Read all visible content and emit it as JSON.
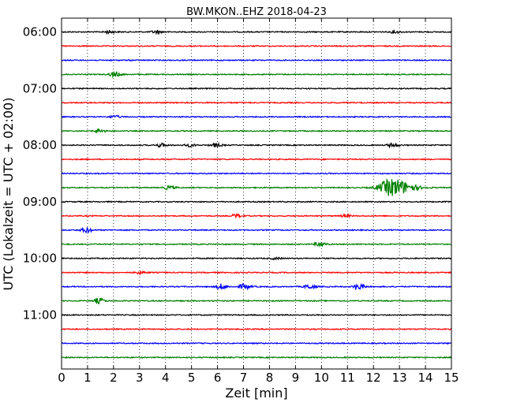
{
  "chart_data": {
    "type": "line",
    "title": "BW.MKON..EHZ 2018-04-23",
    "xlabel": "Zeit  [min]",
    "ylabel": "UTC (Lokalzeit = UTC + 02:00)",
    "xlim": [
      0,
      15
    ],
    "x_ticks": [
      "0",
      "1",
      "2",
      "3",
      "4",
      "5",
      "6",
      "7",
      "8",
      "9",
      "10",
      "11",
      "12",
      "13",
      "14",
      "15"
    ],
    "y_ticks": [
      {
        "time": "06:00",
        "trace": 0
      },
      {
        "time": "07:00",
        "trace": 4
      },
      {
        "time": "08:00",
        "trace": 8
      },
      {
        "time": "09:00",
        "trace": 12
      },
      {
        "time": "10:00",
        "trace": 16
      },
      {
        "time": "11:00",
        "trace": 20
      }
    ],
    "grid": {
      "x": true,
      "y": false
    },
    "colors": [
      "#000000",
      "#ff0000",
      "#0000ff",
      "#008000"
    ],
    "traces": [
      {
        "start": "06:00",
        "events": [
          {
            "t": 1.8,
            "amp": 0.3
          },
          {
            "t": 3.6,
            "amp": 0.3
          },
          {
            "t": 12.8,
            "amp": 0.25
          }
        ]
      },
      {
        "start": "06:15",
        "events": []
      },
      {
        "start": "06:30",
        "events": []
      },
      {
        "start": "06:45",
        "events": [
          {
            "t": 2.0,
            "amp": 0.6
          }
        ]
      },
      {
        "start": "07:00",
        "events": []
      },
      {
        "start": "07:15",
        "events": []
      },
      {
        "start": "07:30",
        "events": [
          {
            "t": 2.0,
            "amp": 0.3
          }
        ]
      },
      {
        "start": "07:45",
        "events": [
          {
            "t": 1.4,
            "amp": 0.4
          }
        ]
      },
      {
        "start": "08:00",
        "events": [
          {
            "t": 3.8,
            "amp": 0.4
          },
          {
            "t": 4.9,
            "amp": 0.3
          },
          {
            "t": 5.9,
            "amp": 0.4
          },
          {
            "t": 12.7,
            "amp": 0.45
          }
        ]
      },
      {
        "start": "08:15",
        "events": []
      },
      {
        "start": "08:30",
        "events": []
      },
      {
        "start": "08:45",
        "events": [
          {
            "t": 4.1,
            "amp": 0.4
          },
          {
            "t": 12.7,
            "amp": 2.0
          }
        ]
      },
      {
        "start": "09:00",
        "events": []
      },
      {
        "start": "09:15",
        "events": [
          {
            "t": 6.7,
            "amp": 0.4
          },
          {
            "t": 10.9,
            "amp": 0.3
          }
        ]
      },
      {
        "start": "09:30",
        "events": [
          {
            "t": 0.9,
            "amp": 0.6
          }
        ]
      },
      {
        "start": "09:45",
        "events": [
          {
            "t": 9.9,
            "amp": 0.5
          }
        ]
      },
      {
        "start": "10:00",
        "events": [
          {
            "t": 8.2,
            "amp": 0.2
          }
        ]
      },
      {
        "start": "10:15",
        "events": [
          {
            "t": 3.0,
            "amp": 0.3
          }
        ]
      },
      {
        "start": "10:30",
        "events": [
          {
            "t": 6.1,
            "amp": 0.6
          },
          {
            "t": 7.0,
            "amp": 0.6
          },
          {
            "t": 9.5,
            "amp": 0.5
          },
          {
            "t": 11.4,
            "amp": 0.7
          }
        ]
      },
      {
        "start": "10:45",
        "events": [
          {
            "t": 1.4,
            "amp": 0.6
          }
        ]
      },
      {
        "start": "11:00",
        "events": []
      },
      {
        "start": "11:15",
        "events": []
      },
      {
        "start": "11:30",
        "events": []
      },
      {
        "start": "11:45",
        "events": []
      }
    ]
  }
}
